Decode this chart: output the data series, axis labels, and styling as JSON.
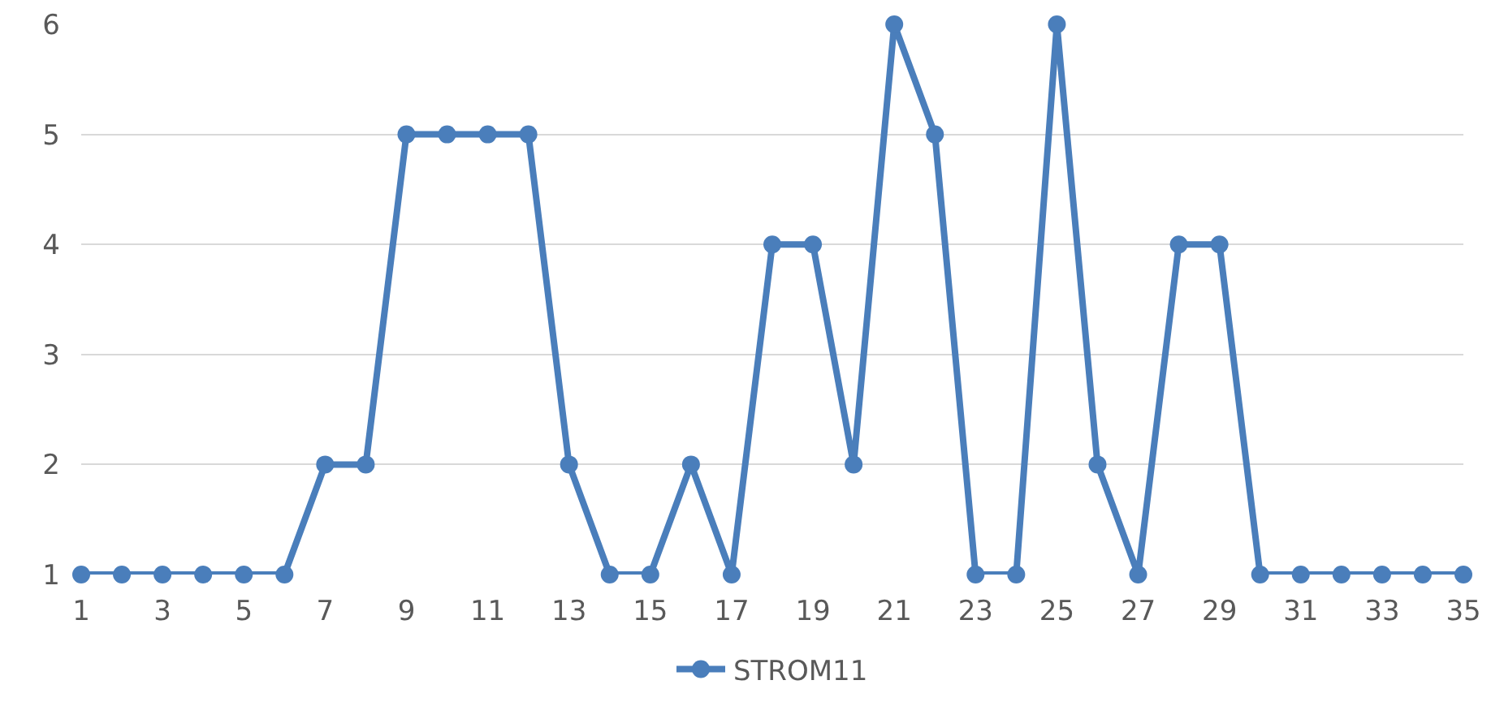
{
  "chart_data": {
    "type": "line",
    "x": [
      1,
      2,
      3,
      4,
      5,
      6,
      7,
      8,
      9,
      10,
      11,
      12,
      13,
      14,
      15,
      16,
      17,
      18,
      19,
      20,
      21,
      22,
      23,
      24,
      25,
      26,
      27,
      28,
      29,
      30,
      31,
      32,
      33,
      34,
      35
    ],
    "series": [
      {
        "name": "STROM11",
        "color": "#4a7ebb",
        "values": [
          1,
          1,
          1,
          1,
          1,
          1,
          2,
          2,
          5,
          5,
          5,
          5,
          2,
          1,
          1,
          2,
          1,
          4,
          4,
          2,
          6,
          5,
          1,
          1,
          6,
          2,
          1,
          4,
          4,
          1,
          1,
          1,
          1,
          1,
          1
        ]
      }
    ],
    "xlim": [
      1,
      35
    ],
    "xticks": [
      1,
      3,
      5,
      7,
      9,
      11,
      13,
      15,
      17,
      19,
      21,
      23,
      25,
      27,
      29,
      31,
      33,
      35
    ],
    "ylim": [
      1,
      6
    ],
    "yticks": [
      1,
      2,
      3,
      4,
      5,
      6
    ],
    "grid": "y",
    "legend": "bottom",
    "marker": "circle",
    "line_style": "solid"
  }
}
